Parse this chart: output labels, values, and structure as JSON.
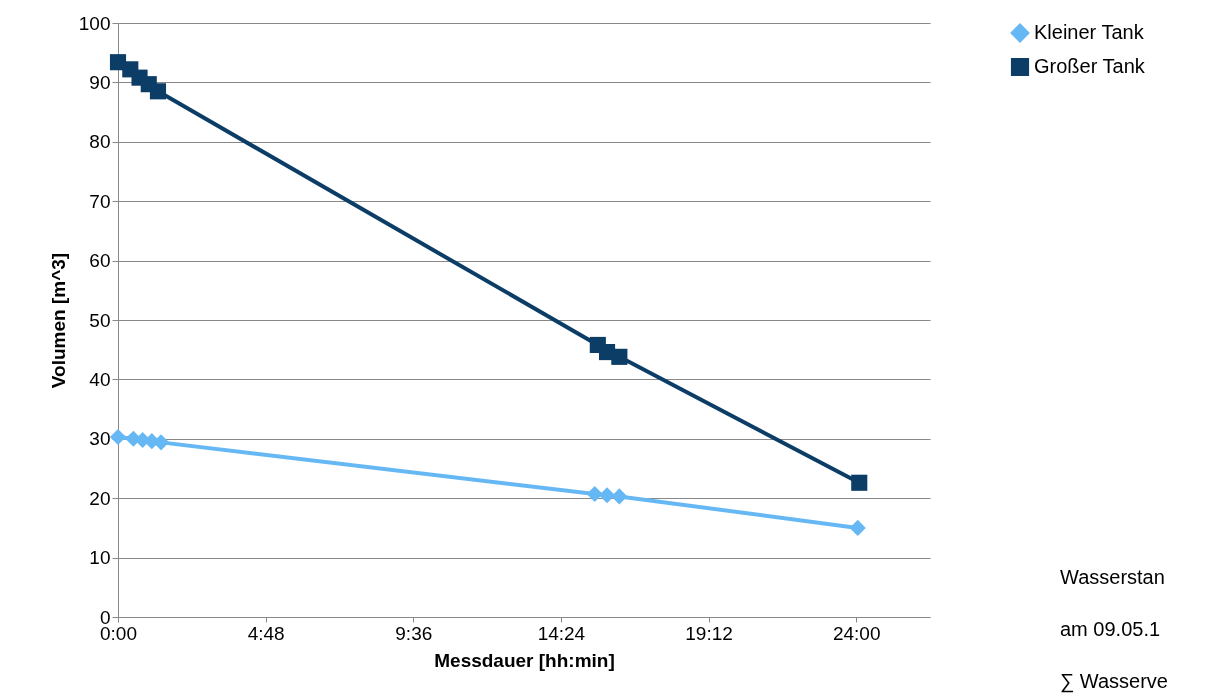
{
  "chart_data": {
    "type": "line",
    "xlabel": "Messdauer [hh:min]",
    "ylabel": "Volumen [m^3]",
    "xlim": [
      0,
      26.4
    ],
    "xticks": [
      {
        "value": 0,
        "label": "0:00"
      },
      {
        "value": 4.8,
        "label": "4:48"
      },
      {
        "value": 9.6,
        "label": "9:36"
      },
      {
        "value": 14.4,
        "label": "14:24"
      },
      {
        "value": 19.2,
        "label": "19:12"
      },
      {
        "value": 24,
        "label": "24:00"
      }
    ],
    "ylim": [
      0,
      100
    ],
    "yticks": [
      0,
      10,
      20,
      30,
      40,
      50,
      60,
      70,
      80,
      90,
      100
    ],
    "grid": "y",
    "legend": "right",
    "line_style": "solid",
    "series": [
      {
        "name": "Kleiner Tank",
        "color": "#66b8f5",
        "marker": "diamond",
        "x": [
          0,
          0.5,
          0.8,
          1.1,
          1.4,
          15.5,
          15.9,
          16.3,
          24.05
        ],
        "values": [
          30.3,
          30.0,
          29.8,
          29.6,
          29.4,
          20.7,
          20.5,
          20.3,
          15.0
        ]
      },
      {
        "name": "Großer Tank",
        "color": "#0b3d66",
        "marker": "square",
        "x": [
          0,
          0.4,
          0.7,
          1.0,
          1.3,
          15.6,
          15.9,
          16.3,
          24.1
        ],
        "values": [
          93.4,
          92.2,
          90.8,
          89.7,
          88.5,
          45.8,
          44.6,
          43.8,
          22.6
        ]
      }
    ],
    "annotations": [
      "Wasserstan",
      "am 09.05.1",
      "∑ Wasserve"
    ]
  }
}
